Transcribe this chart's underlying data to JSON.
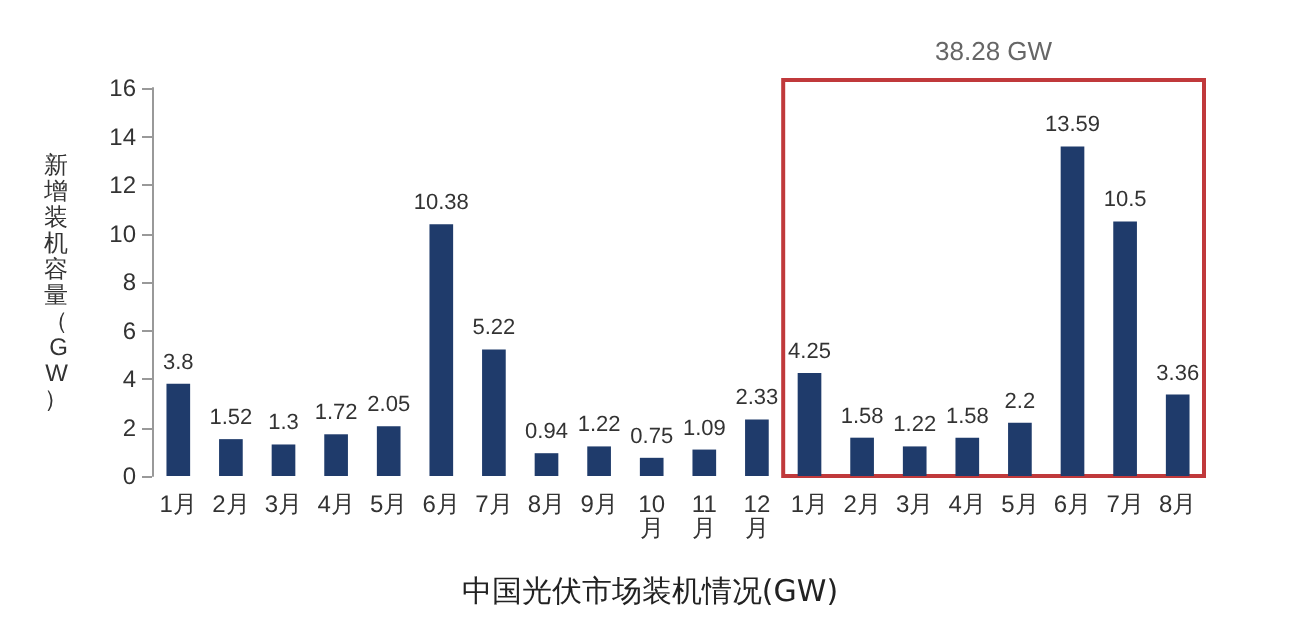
{
  "chart_data": {
    "type": "bar",
    "title": "中国光伏市场装机情况(GW)",
    "ylabel": "新增装机容量（GW）",
    "categories": [
      "1月",
      "2月",
      "3月",
      "4月",
      "5月",
      "6月",
      "7月",
      "8月",
      "9月",
      "10月",
      "11月",
      "12月",
      "1月",
      "2月",
      "3月",
      "4月",
      "5月",
      "6月",
      "7月",
      "8月"
    ],
    "values": [
      3.8,
      1.52,
      1.3,
      1.72,
      2.05,
      10.38,
      5.22,
      0.94,
      1.22,
      0.75,
      1.09,
      2.33,
      4.25,
      1.58,
      1.22,
      1.58,
      2.2,
      13.59,
      10.5,
      3.36
    ],
    "color": "#1f3b6b",
    "ylim": [
      0,
      16
    ],
    "yticks": [
      0,
      2,
      4,
      6,
      8,
      10,
      12,
      14,
      16
    ],
    "grid": false,
    "data_labels": true,
    "annotations": [
      "38.28 GW"
    ]
  }
}
